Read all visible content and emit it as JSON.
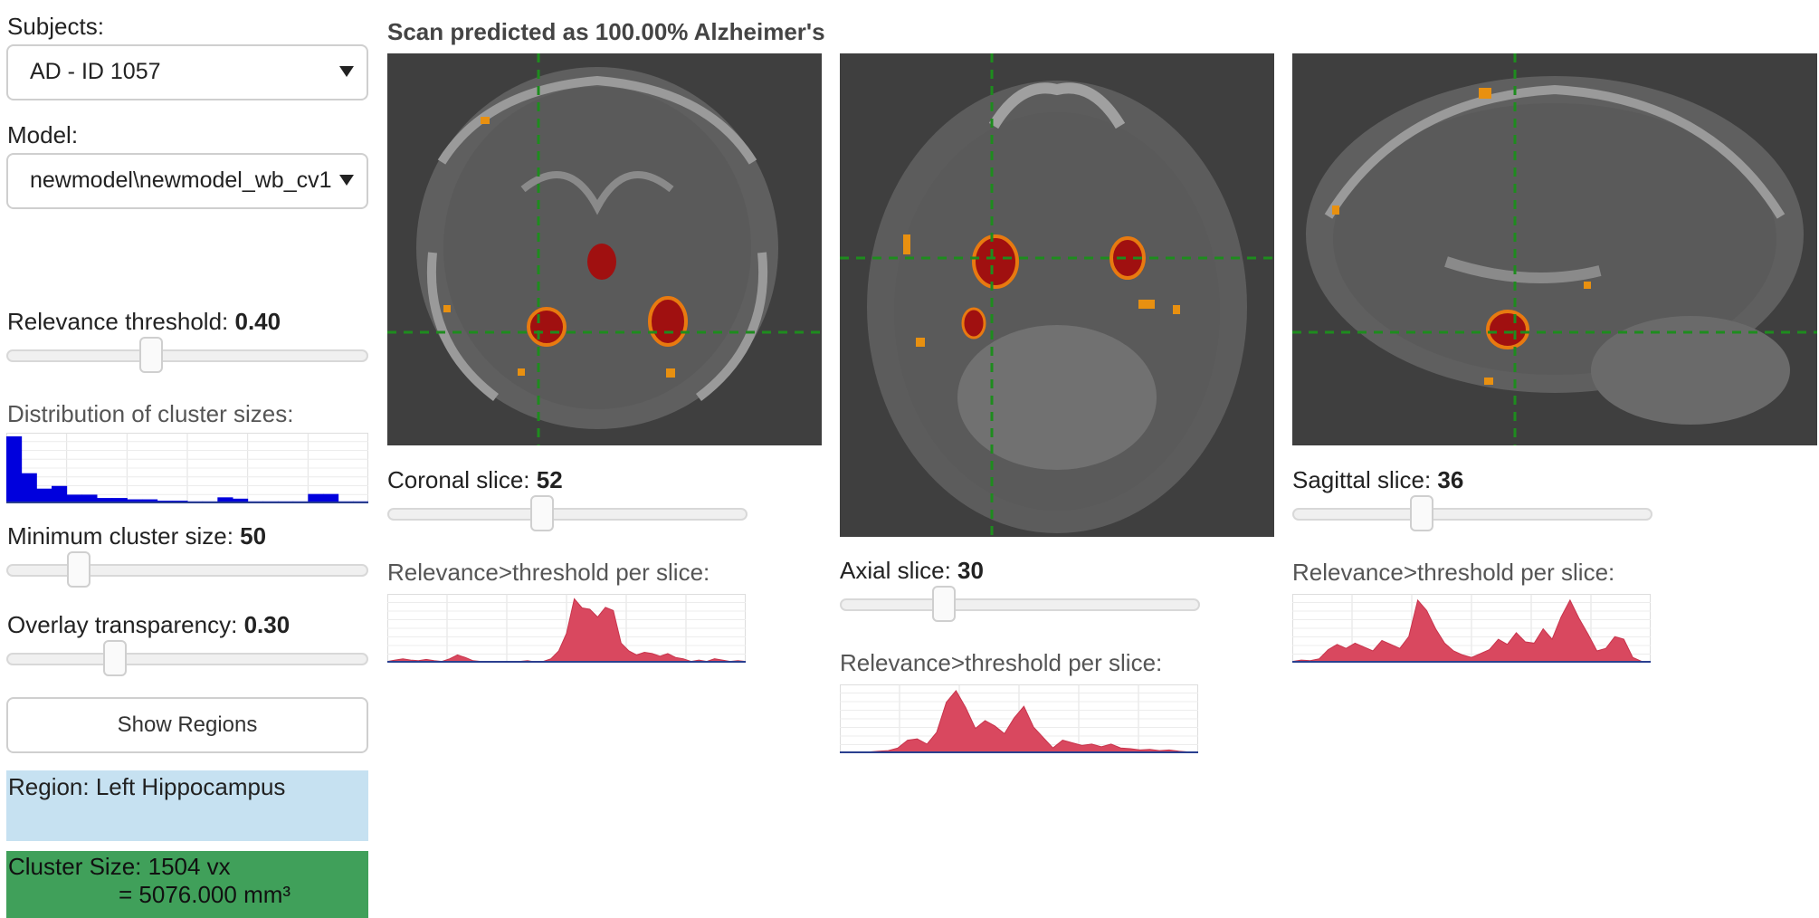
{
  "left": {
    "subjects_label": "Subjects:",
    "subject_value": "AD - ID 1057",
    "model_label": "Model:",
    "model_value": "newmodel\\newmodel_wb_cv1",
    "threshold_label": "Relevance threshold: ",
    "threshold_value": "0.40",
    "threshold_level": 0.4,
    "distribution_label": "Distribution of cluster sizes:",
    "min_cluster_label": "Minimum cluster size: ",
    "min_cluster_value": "50",
    "min_cluster_level": 0.2,
    "transparency_label": "Overlay transparency: ",
    "transparency_value": "0.30",
    "transparency_level": 0.3,
    "show_regions_label": "Show Regions",
    "region_text": "Region: Left Hippocampus",
    "cluster_size_line1": "Cluster Size: 1504 vx",
    "cluster_size_line2": "= 5076.000 mm³"
  },
  "header": {
    "prediction": "Scan predicted as 100.00% Alzheimer's"
  },
  "views": {
    "coronal": {
      "label": "Coronal slice: ",
      "value": "52",
      "level": 0.43,
      "chart_label": "Relevance>threshold per slice:"
    },
    "axial": {
      "label": "Axial slice: ",
      "value": "30",
      "level": 0.29,
      "chart_label": "Relevance>threshold per slice:"
    },
    "sagittal": {
      "label": "Sagittal slice: ",
      "value": "36",
      "level": 0.36,
      "chart_label": "Relevance>threshold per slice:"
    }
  },
  "colors": {
    "histogram_bar": "#0000dd",
    "area_fill": "#d9485f",
    "crosshair": "#1e8c1e",
    "region_bg": "#c6e1f1",
    "cluster_bg": "#40a05a"
  },
  "chart_data": [
    {
      "type": "bar",
      "title": "Distribution of cluster sizes:",
      "values": [
        100,
        45,
        22,
        26,
        13,
        13,
        8,
        8,
        6,
        6,
        4,
        4,
        3,
        3,
        9,
        7,
        3,
        3,
        3,
        3,
        14,
        14,
        3,
        3
      ]
    },
    {
      "type": "area",
      "title": "Relevance>threshold per slice:",
      "view": "coronal",
      "values": [
        2,
        4,
        6,
        4,
        3,
        5,
        3,
        2,
        6,
        12,
        8,
        3,
        2,
        2,
        1,
        1,
        1,
        2,
        3,
        1,
        2,
        6,
        18,
        45,
        98,
        84,
        82,
        70,
        85,
        80,
        30,
        18,
        12,
        16,
        14,
        10,
        14,
        8,
        6,
        2,
        4,
        2,
        6,
        4,
        2,
        3,
        2
      ]
    },
    {
      "type": "area",
      "title": "Relevance>threshold per slice:",
      "view": "axial",
      "values": [
        1,
        1,
        2,
        2,
        3,
        4,
        8,
        20,
        22,
        14,
        32,
        78,
        96,
        70,
        38,
        50,
        42,
        30,
        54,
        72,
        40,
        24,
        8,
        20,
        16,
        12,
        14,
        10,
        14,
        8,
        7,
        5,
        6,
        4,
        5,
        3,
        2,
        1
      ]
    },
    {
      "type": "area",
      "title": "Relevance>threshold per slice:",
      "view": "sagittal",
      "values": [
        2,
        4,
        3,
        6,
        20,
        28,
        22,
        30,
        24,
        18,
        34,
        28,
        22,
        40,
        96,
        80,
        52,
        30,
        18,
        12,
        8,
        14,
        20,
        36,
        28,
        46,
        32,
        30,
        52,
        36,
        70,
        96,
        68,
        44,
        18,
        22,
        40,
        36,
        8,
        2,
        1
      ]
    }
  ]
}
